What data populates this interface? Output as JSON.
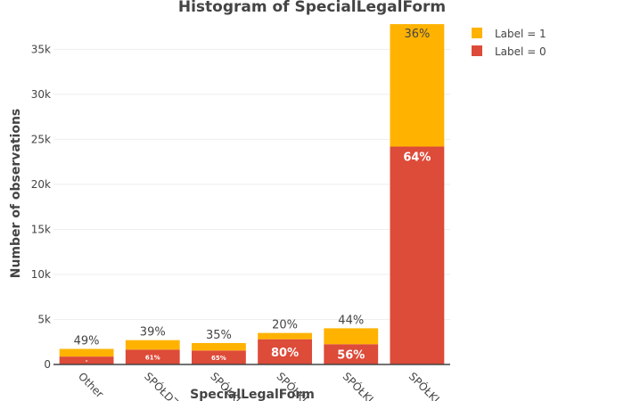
{
  "chart_data": {
    "type": "bar",
    "stacked": true,
    "title": "Histogram of SpecialLegalForm",
    "xlabel": "SpecialLegalForm",
    "ylabel": "Number of observations",
    "ylim": [
      0,
      38500
    ],
    "yticks": [
      0,
      5000,
      10000,
      15000,
      20000,
      25000,
      30000,
      35000
    ],
    "ytick_labels": [
      "0",
      "5k",
      "10k",
      "15k",
      "20k",
      "25k",
      "30k",
      "35k"
    ],
    "categories": [
      "Other",
      "SPÓŁDZ",
      "SPÓŁKI",
      "SPÓŁKI",
      "SPÓŁKI",
      "SPÓŁKI"
    ],
    "grid": true,
    "legend_position": "top-right",
    "series": [
      {
        "name": "Label = 0",
        "color": "#DD4B39",
        "values": [
          880,
          1650,
          1550,
          2800,
          2250,
          24200
        ],
        "labels": [
          "-",
          "61%",
          "65%",
          "80%",
          "56%",
          "64%"
        ]
      },
      {
        "name": "Label = 1",
        "color": "#FFB300",
        "values": [
          850,
          1050,
          830,
          700,
          1770,
          13600
        ],
        "labels": [
          "49%",
          "39%",
          "35%",
          "20%",
          "44%",
          "36%"
        ]
      }
    ]
  }
}
